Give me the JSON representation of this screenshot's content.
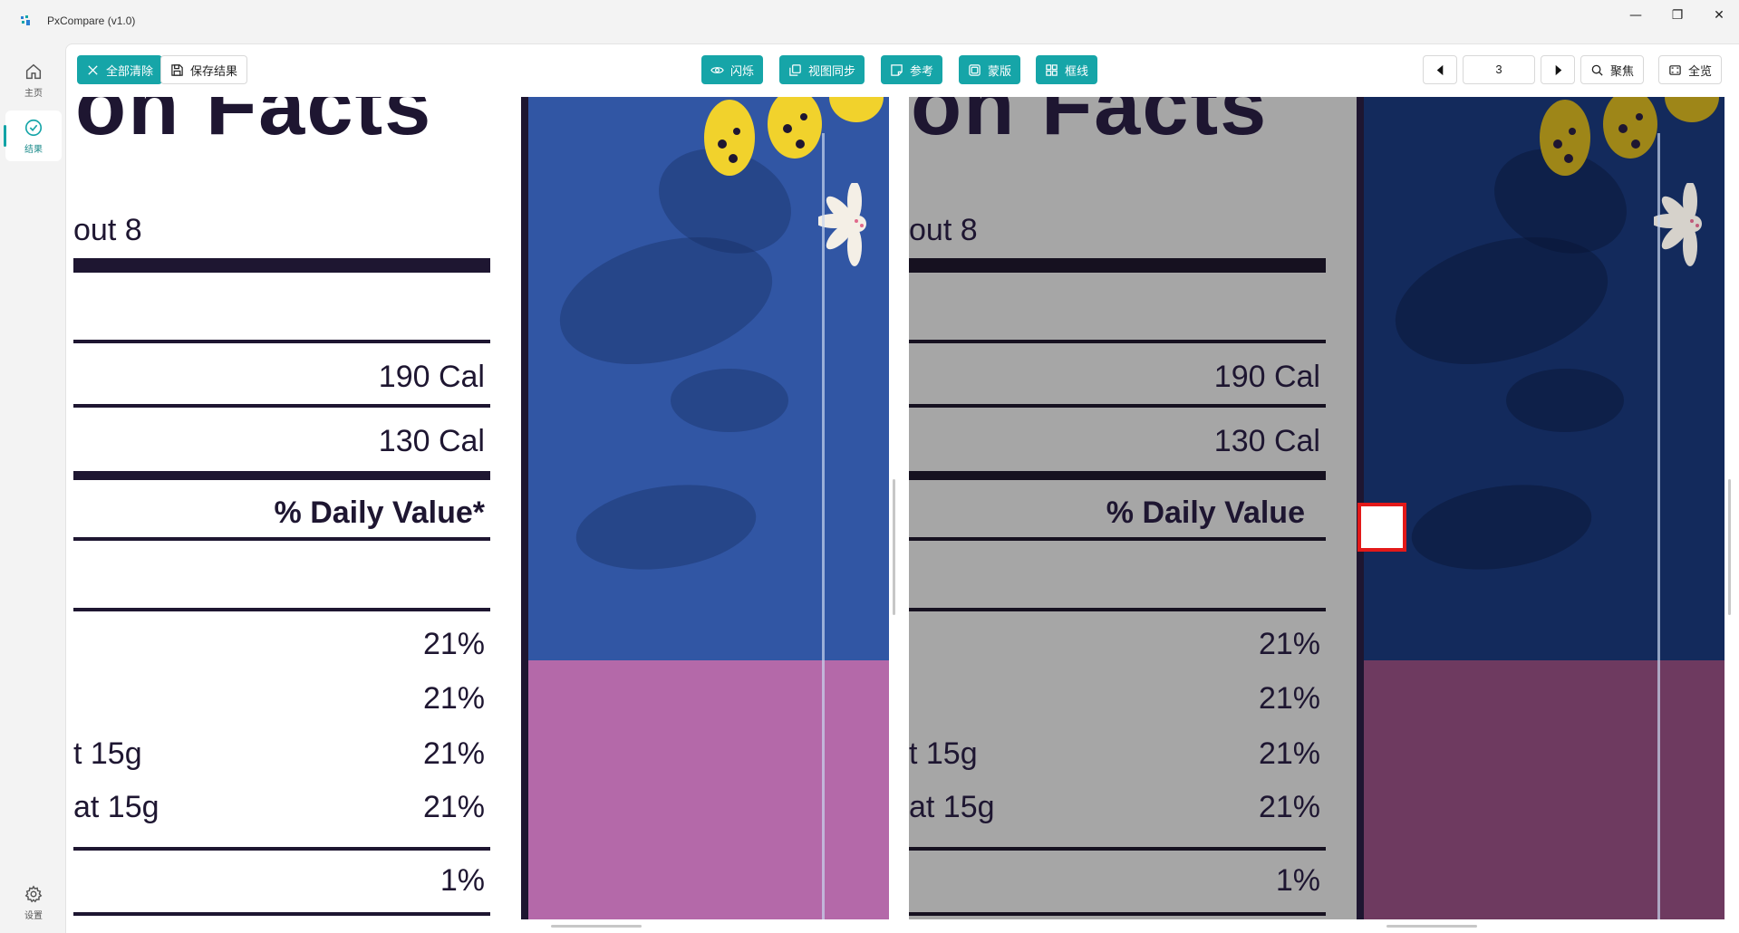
{
  "window": {
    "title": "PxCompare (v1.0)",
    "controls": {
      "minimize": "—",
      "maximize": "❐",
      "close": "✕"
    }
  },
  "sidebar": {
    "items": [
      {
        "label": "主页",
        "icon": "home-icon"
      },
      {
        "label": "结果",
        "icon": "check-circle-icon",
        "active": true
      },
      {
        "label": "设置",
        "icon": "gear-icon"
      }
    ]
  },
  "toolbar": {
    "clear_all": "全部清除",
    "save_results": "保存结果",
    "blink": "闪烁",
    "view_sync": "视图同步",
    "reference": "参考",
    "mask": "蒙版",
    "frame_lines": "框线",
    "page_value": "3",
    "focus": "聚焦",
    "overview": "全览"
  },
  "colors": {
    "accent": "#16a5a8",
    "diff_marker": "#e31919"
  },
  "compare": {
    "left": {
      "header": "on Facts",
      "serving": "out 8",
      "cal1": "190 Cal",
      "cal2": "130 Cal",
      "daily_value": "% Daily Value*",
      "pct1": "21%",
      "pct2": "21%",
      "row3_label": "t 15g",
      "pct3": "21%",
      "row4_label": "at 15g",
      "pct4": "21%",
      "pct5": "1%"
    },
    "right": {
      "header": "on Facts",
      "serving": "out 8",
      "cal1": "190 Cal",
      "cal2": "130 Cal",
      "daily_value": "% Daily Value",
      "pct1": "21%",
      "pct2": "21%",
      "row3_label": "t 15g",
      "pct3": "21%",
      "row4_label": "at 15g",
      "pct4": "21%",
      "pct5": "1%"
    }
  }
}
